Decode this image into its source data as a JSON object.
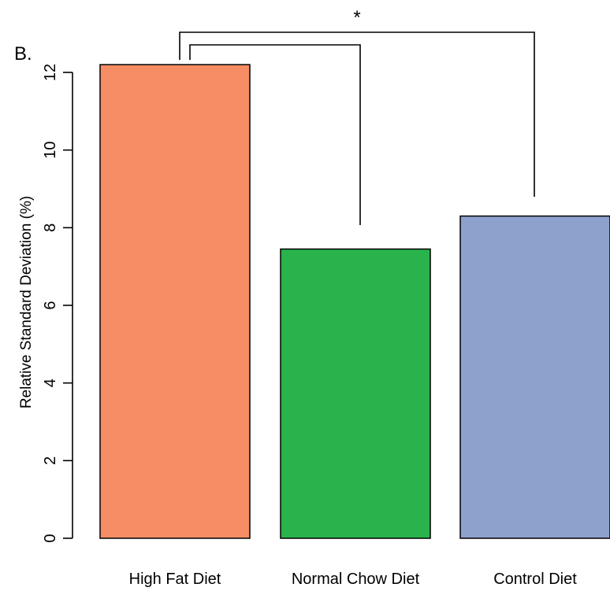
{
  "panel_label": "B.",
  "chart_data": {
    "type": "bar",
    "categories": [
      "High Fat Diet",
      "Normal Chow Diet",
      "Control Diet"
    ],
    "values": [
      12.2,
      7.45,
      8.3
    ],
    "colors": [
      "#F68D64",
      "#2AB34C",
      "#8EA1CC"
    ],
    "ylabel": "Relative Standard Deviation (%)",
    "xlabel": "",
    "ylim": [
      0,
      12
    ],
    "yticks": [
      0,
      2,
      4,
      6,
      8,
      10,
      12
    ],
    "grid": false,
    "significance": [
      {
        "from": "High Fat Diet",
        "to": "Normal Chow Diet",
        "label": ""
      },
      {
        "from": "High Fat Diet",
        "to": "Control Diet",
        "label": "*"
      }
    ]
  }
}
